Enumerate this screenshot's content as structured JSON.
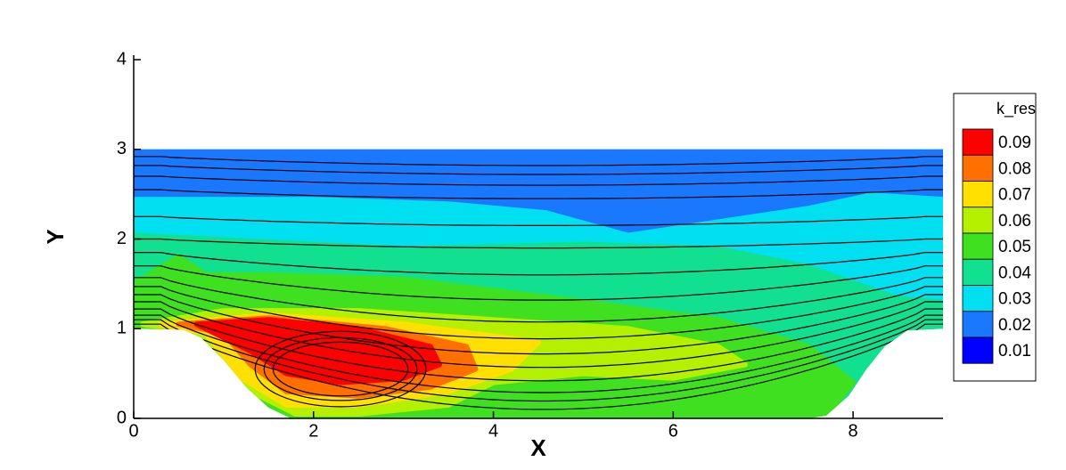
{
  "chart_data": {
    "type": "contour",
    "x_label": "X",
    "y_label": "Y",
    "xlim": [
      0,
      9
    ],
    "ylim": [
      0,
      4.05
    ],
    "xticks": [
      0,
      2,
      4,
      6,
      8
    ],
    "yticks": [
      0,
      1,
      2,
      3,
      4
    ],
    "legend": {
      "title": "k_res",
      "position": "right",
      "levels": [
        0.09,
        0.08,
        0.07,
        0.06,
        0.05,
        0.04,
        0.03,
        0.02,
        0.01
      ],
      "colors": [
        "#ff0000",
        "#ff7000",
        "#ffe000",
        "#b4f000",
        "#3ee020",
        "#10e090",
        "#00e0f0",
        "#1a78ff",
        "#0000ff"
      ]
    }
  }
}
